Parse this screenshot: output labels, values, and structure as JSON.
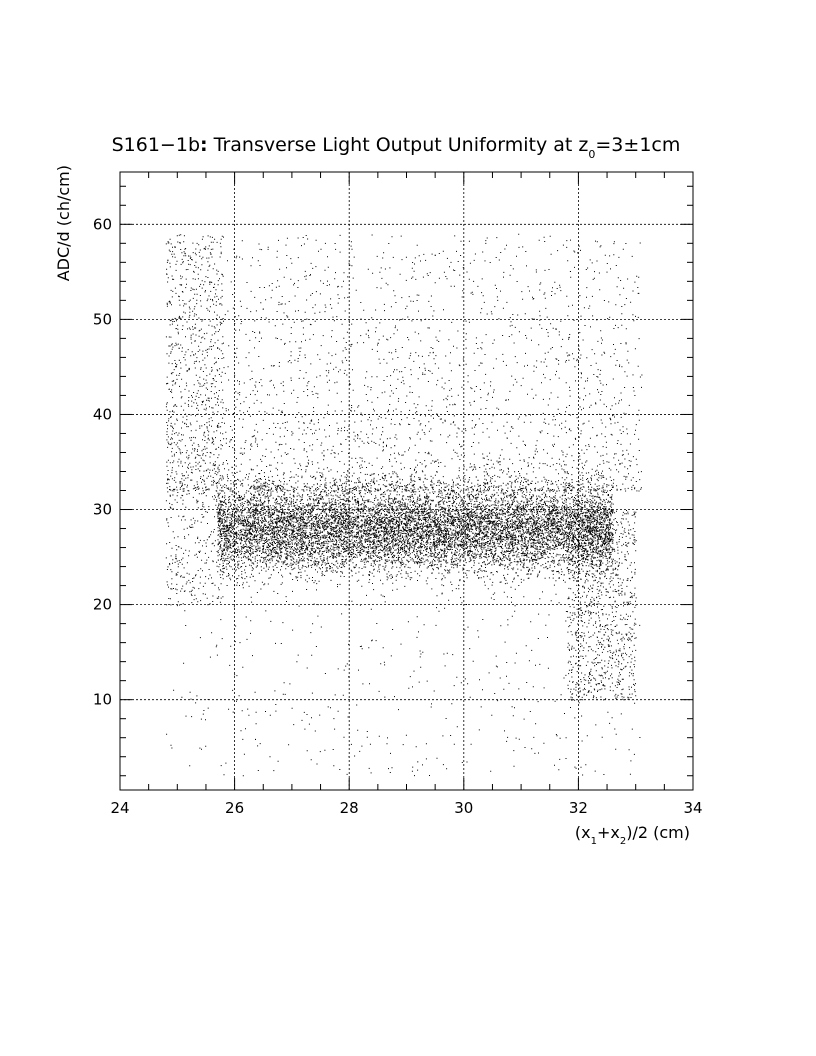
{
  "chart_data": {
    "type": "scatter",
    "title": {
      "prefix": "S161−1b",
      "colon": ":",
      "middle": " Transverse Light Output Uniformity at z",
      "sub": "0",
      "suffix": "=3±1cm"
    },
    "ylabel": "ADC/d (ch/cm)",
    "xlabel": {
      "p1": "(x",
      "s1": "1",
      "p2": "+x",
      "s2": "2",
      "p3": ")/2 (cm)"
    },
    "xlim": [
      24,
      34
    ],
    "ylim": [
      0.5,
      65.5
    ],
    "xticks": [
      24,
      26,
      28,
      30,
      32,
      34
    ],
    "yticks": [
      10,
      20,
      30,
      40,
      50,
      60
    ],
    "grid": true,
    "legend": "none",
    "marker_color": "#000000",
    "note": "",
    "distribution": {
      "n_points": 16000,
      "x_range": [
        24.8,
        33.1
      ],
      "core_band_y": 28,
      "core_band_spread": 3.2,
      "upper_tail_y_max": 59,
      "lower_tail_y_min": 2,
      "right_edge_dip": {
        "x": [
          31.8,
          33.0
        ],
        "y_range": [
          10,
          30
        ]
      },
      "left_edge_spread": {
        "x": [
          24.8,
          25.8
        ],
        "y_range": [
          20,
          59
        ]
      }
    }
  }
}
